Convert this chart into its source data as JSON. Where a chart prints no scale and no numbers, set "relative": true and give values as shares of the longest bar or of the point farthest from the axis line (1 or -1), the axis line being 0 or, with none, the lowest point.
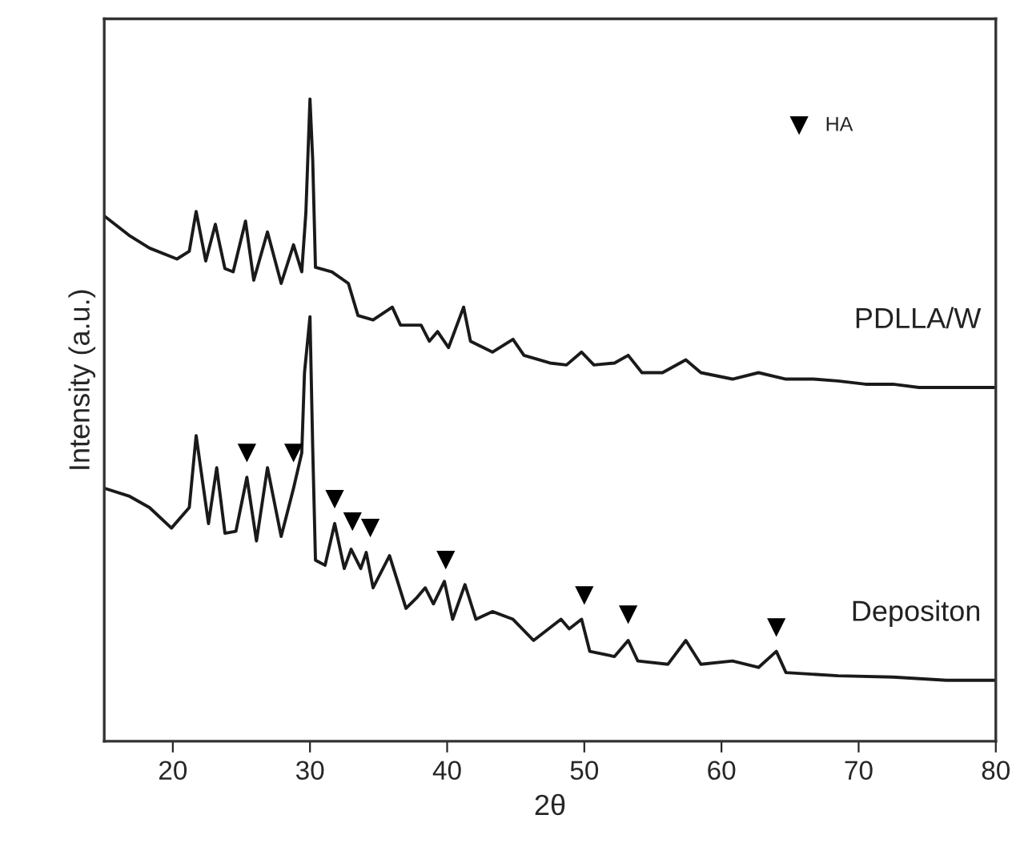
{
  "chart_data": {
    "type": "line",
    "relative": true,
    "xlabel": "2θ",
    "ylabel": "Intensity (a.u.)",
    "xlim": [
      15,
      80
    ],
    "xticks": [
      20,
      30,
      40,
      50,
      60,
      70,
      80
    ],
    "tick_labels": "x",
    "grid": false,
    "legend": "top right",
    "marker": "none",
    "line_style": "solid",
    "series": [
      {
        "name": "PDLLA/W",
        "color": "#1a1a1a",
        "x": [
          15.0,
          16.8,
          18.3,
          20.3,
          21.2,
          21.7,
          22.4,
          23.1,
          23.8,
          24.4,
          25.3,
          25.9,
          26.9,
          27.9,
          28.8,
          29.4,
          29.7,
          30.0,
          30.2,
          30.4,
          31.6,
          32.8,
          33.5,
          34.6,
          36.0,
          36.6,
          38.1,
          38.7,
          39.3,
          40.1,
          41.2,
          41.7,
          43.3,
          44.8,
          45.6,
          47.5,
          48.7,
          49.8,
          50.7,
          52.2,
          53.2,
          54.2,
          55.7,
          57.4,
          58.5,
          60.8,
          62.7,
          64.7,
          66.7,
          68.5,
          70.5,
          72.5,
          74.4,
          76.4,
          79.9
        ],
        "values": [
          0.818,
          0.788,
          0.768,
          0.751,
          0.763,
          0.825,
          0.748,
          0.805,
          0.736,
          0.731,
          0.81,
          0.718,
          0.793,
          0.713,
          0.773,
          0.731,
          0.823,
          1.0,
          0.905,
          0.738,
          0.731,
          0.713,
          0.663,
          0.656,
          0.676,
          0.648,
          0.648,
          0.623,
          0.638,
          0.613,
          0.676,
          0.623,
          0.606,
          0.626,
          0.601,
          0.589,
          0.586,
          0.606,
          0.586,
          0.589,
          0.601,
          0.574,
          0.574,
          0.594,
          0.574,
          0.564,
          0.574,
          0.564,
          0.564,
          0.561,
          0.556,
          0.556,
          0.551,
          0.551,
          0.551
        ]
      },
      {
        "name": "Depositon",
        "color": "#1a1a1a",
        "x": [
          15.0,
          16.8,
          18.3,
          19.9,
          21.2,
          21.7,
          22.6,
          23.2,
          23.8,
          24.6,
          25.4,
          26.1,
          26.9,
          27.9,
          28.8,
          29.4,
          29.6,
          30.0,
          30.2,
          30.4,
          31.1,
          31.8,
          32.5,
          33.0,
          33.7,
          34.1,
          34.6,
          35.8,
          37.0,
          37.8,
          38.4,
          39.0,
          39.8,
          40.4,
          41.3,
          42.1,
          43.3,
          44.8,
          46.3,
          48.3,
          48.9,
          49.8,
          50.4,
          52.2,
          53.2,
          53.9,
          56.1,
          57.4,
          58.5,
          60.8,
          62.7,
          64.0,
          64.7,
          68.5,
          72.5,
          76.4,
          79.9
        ],
        "values": [
          0.394,
          0.382,
          0.364,
          0.332,
          0.364,
          0.476,
          0.339,
          0.426,
          0.324,
          0.327,
          0.411,
          0.312,
          0.426,
          0.319,
          0.394,
          0.449,
          0.574,
          0.661,
          0.456,
          0.282,
          0.274,
          0.339,
          0.269,
          0.299,
          0.269,
          0.294,
          0.239,
          0.289,
          0.207,
          0.224,
          0.239,
          0.214,
          0.249,
          0.19,
          0.244,
          0.19,
          0.202,
          0.19,
          0.157,
          0.19,
          0.175,
          0.19,
          0.14,
          0.132,
          0.157,
          0.125,
          0.12,
          0.157,
          0.12,
          0.125,
          0.115,
          0.14,
          0.107,
          0.102,
          0.1,
          0.095,
          0.095
        ]
      },
      {
        "name": "HA",
        "type": "scatter",
        "marker": "triangle",
        "color": "#000000",
        "x": [
          25.4,
          28.8,
          31.8,
          33.1,
          34.4,
          39.9,
          50.0,
          53.2,
          64.0
        ],
        "values": [
          0.449,
          0.449,
          0.377,
          0.342,
          0.332,
          0.282,
          0.227,
          0.197,
          0.177
        ]
      }
    ]
  }
}
